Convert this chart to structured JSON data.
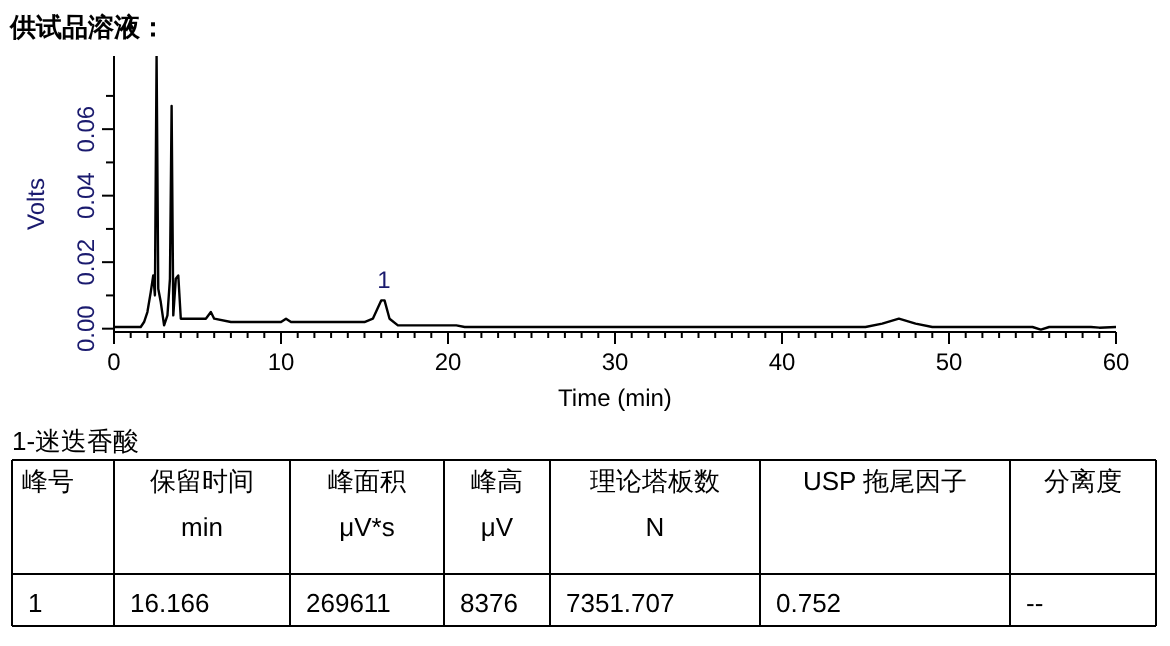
{
  "chart_data": {
    "type": "line",
    "title": "供试品溶液：",
    "xlabel": "Time (min)",
    "ylabel": "Volts",
    "xlim": [
      0,
      60
    ],
    "ylim": [
      -0.001,
      0.082
    ],
    "xticks": [
      0,
      {
        "value": 1,
        "label": null
      },
      {
        "value": 2,
        "label": null
      },
      {
        "value": 3,
        "label": null
      },
      {
        "value": 4,
        "label": null
      },
      {
        "value": 5,
        "label": null
      },
      {
        "value": 6,
        "label": null
      },
      {
        "value": 7,
        "label": null
      },
      {
        "value": 8,
        "label": null
      },
      {
        "value": 9,
        "label": null
      },
      10,
      {
        "value": 11,
        "label": null
      },
      {
        "value": 12,
        "label": null
      },
      {
        "value": 13,
        "label": null
      },
      {
        "value": 14,
        "label": null
      },
      {
        "value": 15,
        "label": null
      },
      {
        "value": 16,
        "label": null
      },
      {
        "value": 17,
        "label": null
      },
      {
        "value": 18,
        "label": null
      },
      {
        "value": 19,
        "label": null
      },
      20,
      {
        "value": 21,
        "label": null
      },
      {
        "value": 22,
        "label": null
      },
      {
        "value": 23,
        "label": null
      },
      {
        "value": 24,
        "label": null
      },
      {
        "value": 25,
        "label": null
      },
      {
        "value": 26,
        "label": null
      },
      {
        "value": 27,
        "label": null
      },
      {
        "value": 28,
        "label": null
      },
      {
        "value": 29,
        "label": null
      },
      30,
      {
        "value": 31,
        "label": null
      },
      {
        "value": 32,
        "label": null
      },
      {
        "value": 33,
        "label": null
      },
      {
        "value": 34,
        "label": null
      },
      {
        "value": 35,
        "label": null
      },
      {
        "value": 36,
        "label": null
      },
      {
        "value": 37,
        "label": null
      },
      {
        "value": 38,
        "label": null
      },
      {
        "value": 39,
        "label": null
      },
      40,
      {
        "value": 41,
        "label": null
      },
      {
        "value": 42,
        "label": null
      },
      {
        "value": 43,
        "label": null
      },
      {
        "value": 44,
        "label": null
      },
      {
        "value": 45,
        "label": null
      },
      {
        "value": 46,
        "label": null
      },
      {
        "value": 47,
        "label": null
      },
      {
        "value": 48,
        "label": null
      },
      {
        "value": 49,
        "label": null
      },
      50,
      {
        "value": 51,
        "label": null
      },
      {
        "value": 52,
        "label": null
      },
      {
        "value": 53,
        "label": null
      },
      {
        "value": 54,
        "label": null
      },
      {
        "value": 55,
        "label": null
      },
      {
        "value": 56,
        "label": null
      },
      {
        "value": 57,
        "label": null
      },
      {
        "value": 58,
        "label": null
      },
      {
        "value": 59,
        "label": null
      },
      60
    ],
    "yticks": [
      {
        "value": 0,
        "label": "0.00"
      },
      {
        "value": 0.01,
        "label": null
      },
      {
        "value": 0.02,
        "label": "0.02"
      },
      {
        "value": 0.03,
        "label": null
      },
      {
        "value": 0.04,
        "label": "0.04"
      },
      {
        "value": 0.05,
        "label": null
      },
      {
        "value": 0.06,
        "label": "0.06"
      },
      {
        "value": 0.07,
        "label": null
      }
    ],
    "grid": false,
    "marker": "none",
    "line_style": "solid",
    "x": [
      0,
      1.6,
      1.8,
      2.0,
      2.2,
      2.35,
      2.45,
      2.55,
      2.65,
      2.8,
      3.0,
      3.2,
      3.35,
      3.45,
      3.55,
      3.7,
      3.85,
      4.0,
      4.5,
      5.5,
      5.8,
      6.0,
      7,
      8,
      9,
      10,
      10.3,
      10.6,
      12,
      15,
      15.5,
      16.0,
      16.2,
      16.5,
      17,
      20,
      20.5,
      21,
      45,
      46,
      47,
      48,
      49,
      55,
      55.5,
      56,
      58.5,
      59,
      60
    ],
    "series": [
      {
        "color": "#000000",
        "values": [
          0.0005,
          0.0005,
          0.002,
          0.005,
          0.011,
          0.016,
          0.01,
          0.082,
          0.012,
          0.008,
          0.001,
          0.004,
          0.015,
          0.067,
          0.004,
          0.015,
          0.016,
          0.003,
          0.003,
          0.003,
          0.005,
          0.003,
          0.002,
          0.002,
          0.002,
          0.002,
          0.003,
          0.002,
          0.002,
          0.002,
          0.003,
          0.0085,
          0.0085,
          0.003,
          0.001,
          0.001,
          0.001,
          0.0005,
          0.0005,
          0.0015,
          0.003,
          0.0015,
          0.0005,
          0.0005,
          -0.0003,
          0.0005,
          0.0005,
          0.0003,
          0.0005
        ]
      }
    ],
    "annotations": [
      {
        "text": "1",
        "x": 16.166,
        "y": 0.0085
      },
      "1-迷迭香酸",
      "峰号",
      "保留时间\nmin",
      "峰面积\nμV*s",
      "峰高\nμV",
      "理论塔板数\nN",
      "USP 拖尾因子",
      "分离度",
      "1",
      "16.166",
      "269611",
      "8376",
      "7351.707",
      "0.752",
      "--"
    ]
  }
}
